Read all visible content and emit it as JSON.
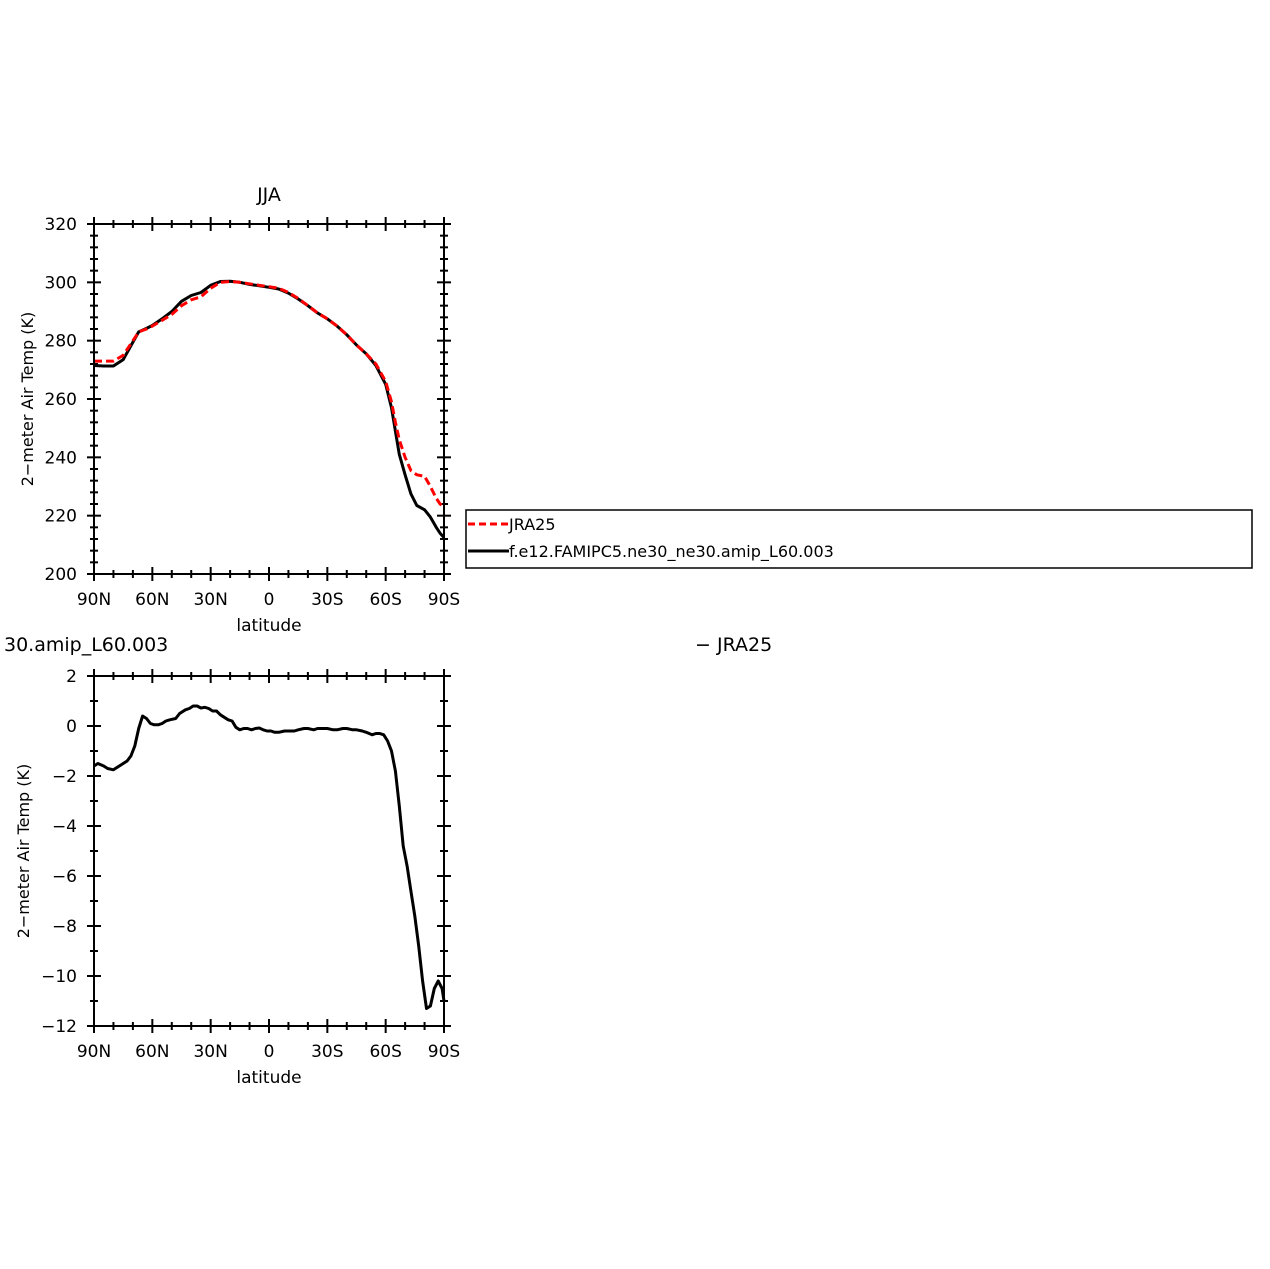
{
  "chart_data": [
    {
      "type": "line",
      "title": "JJA",
      "xlabel": "latitude",
      "ylabel": "2−meter Air Temp (K)",
      "xlim": [
        90,
        -90
      ],
      "ylim": [
        200,
        320
      ],
      "x_ticks": [
        {
          "value": 90,
          "label": "90N"
        },
        {
          "value": 60,
          "label": "60N"
        },
        {
          "value": 30,
          "label": "30N"
        },
        {
          "value": 0,
          "label": "0"
        },
        {
          "value": -30,
          "label": "30S"
        },
        {
          "value": -60,
          "label": "60S"
        },
        {
          "value": -90,
          "label": "90S"
        }
      ],
      "y_ticks": [
        200,
        220,
        240,
        260,
        280,
        300,
        320
      ],
      "legend": "right",
      "series": [
        {
          "name": "JRA25",
          "color": "#ff0000",
          "style": "dashed",
          "x": [
            90,
            85,
            80,
            75,
            70,
            67,
            63,
            60,
            55,
            50,
            45,
            40,
            35,
            30,
            25,
            20,
            15,
            10,
            5,
            0,
            -5,
            -10,
            -15,
            -20,
            -25,
            -30,
            -35,
            -40,
            -45,
            -50,
            -55,
            -60,
            -63,
            -65,
            -67,
            -70,
            -73,
            -76,
            -80,
            -83,
            -86,
            -88,
            -90
          ],
          "y": [
            273,
            273,
            273,
            275,
            280,
            283,
            284,
            285,
            287,
            289,
            292,
            294,
            295,
            298,
            300,
            300.3,
            300,
            299.5,
            299,
            298.5,
            298,
            296.5,
            294.5,
            292,
            289.5,
            287.5,
            285,
            282,
            278.5,
            275.5,
            272,
            266,
            259,
            252,
            246,
            240,
            235.5,
            234,
            233.5,
            230,
            226,
            224,
            223
          ]
        },
        {
          "name": "f.e12.FAMIPC5.ne30_ne30.amip_L60.003",
          "color": "#000000",
          "style": "solid",
          "x": [
            90,
            85,
            80,
            75,
            70,
            67,
            63,
            60,
            55,
            50,
            45,
            40,
            35,
            30,
            25,
            20,
            15,
            10,
            5,
            0,
            -5,
            -10,
            -15,
            -20,
            -25,
            -30,
            -35,
            -40,
            -45,
            -50,
            -55,
            -60,
            -63,
            -65,
            -67,
            -70,
            -73,
            -76,
            -80,
            -83,
            -86,
            -88,
            -90
          ],
          "y": [
            271.5,
            271.3,
            271.3,
            273.5,
            279.5,
            283,
            284.2,
            285.2,
            287.5,
            290,
            293.5,
            295.5,
            296.5,
            299,
            300.3,
            300.4,
            300,
            299.3,
            298.8,
            298.3,
            297.7,
            296.3,
            294.3,
            292,
            289.5,
            287.5,
            285,
            282,
            278.5,
            275.5,
            271.5,
            265,
            257,
            249,
            241,
            234,
            227.5,
            223.5,
            222,
            219.5,
            216,
            214,
            212.5
          ]
        }
      ]
    },
    {
      "type": "line",
      "title_left": "30.amip_L60.003",
      "title_right": "− JRA25",
      "xlabel": "latitude",
      "ylabel": "2−meter Air Temp (K)",
      "xlim": [
        90,
        -90
      ],
      "ylim": [
        -12,
        2
      ],
      "x_ticks": [
        {
          "value": 90,
          "label": "90N"
        },
        {
          "value": 60,
          "label": "60N"
        },
        {
          "value": 30,
          "label": "30N"
        },
        {
          "value": 0,
          "label": "0"
        },
        {
          "value": -30,
          "label": "30S"
        },
        {
          "value": -60,
          "label": "60S"
        },
        {
          "value": -90,
          "label": "90S"
        }
      ],
      "y_ticks": [
        -12,
        -10,
        -8,
        -6,
        -4,
        -2,
        0,
        2
      ],
      "series": [
        {
          "color": "#000000",
          "style": "solid",
          "x": [
            90,
            88,
            85,
            83,
            80,
            77,
            75,
            73,
            71,
            69,
            67,
            65,
            63,
            61,
            59,
            57,
            55,
            53,
            51,
            48,
            46,
            43,
            41,
            39,
            37,
            35,
            33,
            31,
            29,
            27,
            25,
            23,
            21,
            19,
            17,
            15,
            13,
            11,
            9,
            7,
            5,
            3,
            1,
            -1,
            -3,
            -5,
            -8,
            -10,
            -13,
            -15,
            -18,
            -20,
            -23,
            -25,
            -28,
            -30,
            -33,
            -35,
            -38,
            -40,
            -43,
            -45,
            -48,
            -50,
            -53,
            -55,
            -57,
            -59,
            -61,
            -63,
            -65,
            -67,
            -69,
            -71,
            -73,
            -75,
            -77,
            -79,
            -81,
            -83,
            -85,
            -87,
            -89,
            -90
          ],
          "y": [
            -1.6,
            -1.5,
            -1.6,
            -1.7,
            -1.75,
            -1.6,
            -1.5,
            -1.4,
            -1.2,
            -0.8,
            -0.1,
            0.4,
            0.3,
            0.1,
            0.05,
            0.05,
            0.1,
            0.2,
            0.25,
            0.3,
            0.5,
            0.65,
            0.7,
            0.8,
            0.8,
            0.72,
            0.75,
            0.7,
            0.6,
            0.6,
            0.45,
            0.35,
            0.25,
            0.2,
            -0.05,
            -0.15,
            -0.1,
            -0.1,
            -0.15,
            -0.1,
            -0.08,
            -0.15,
            -0.2,
            -0.2,
            -0.25,
            -0.25,
            -0.2,
            -0.2,
            -0.2,
            -0.15,
            -0.1,
            -0.1,
            -0.15,
            -0.1,
            -0.1,
            -0.1,
            -0.15,
            -0.15,
            -0.1,
            -0.1,
            -0.15,
            -0.15,
            -0.2,
            -0.25,
            -0.35,
            -0.3,
            -0.3,
            -0.35,
            -0.6,
            -1.0,
            -1.8,
            -3.2,
            -4.8,
            -5.6,
            -6.6,
            -7.6,
            -8.8,
            -10.2,
            -11.3,
            -11.2,
            -10.5,
            -10.2,
            -10.5,
            -11.0
          ]
        }
      ]
    }
  ],
  "colors": {
    "jra25": "#ff0000",
    "model": "#000000",
    "axes": "#000000"
  }
}
